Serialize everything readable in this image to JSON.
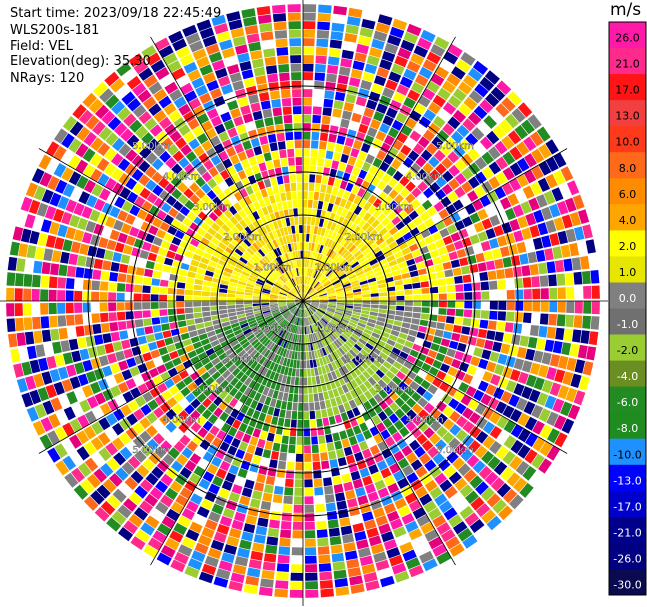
{
  "header": {
    "start_time": "Start time: 2023/09/18 22:45:49",
    "instrument": "WLS200s-181",
    "field": "Field: VEL",
    "elevation": "Elevation(deg): 35.30",
    "nrays": "NRays: 120"
  },
  "colorbar": {
    "unit": "m/s",
    "ticks": [
      "26.0",
      "21.0",
      "17.0",
      "13.0",
      "10.0",
      "8.0",
      "6.0",
      "4.0",
      "2.0",
      "1.0",
      "0.0",
      "-1.0",
      "-2.0",
      "-4.0",
      "-6.0",
      "-8.0",
      "-10.0",
      "-13.0",
      "-17.0",
      "-21.0",
      "-26.0",
      "-30.0"
    ],
    "colors": [
      "#ff1aa8",
      "#ff2a8c",
      "#ff1515",
      "#f23f3f",
      "#ff3a1a",
      "#ff6a1a",
      "#ff8c00",
      "#ffa500",
      "#ffff00",
      "#e6e600",
      "#808080",
      "#707070",
      "#9acd32",
      "#6b8e23",
      "#228b22",
      "#1e8c1e",
      "#1e90ff",
      "#0000ff",
      "#0000cd",
      "#00008b",
      "#000080",
      "#0a0a50"
    ]
  },
  "rings": {
    "labels": [
      "1.00km",
      "2.00km",
      "3.00km",
      "4.00km",
      "5.00km"
    ]
  },
  "chart_data": {
    "type": "heatmap",
    "projection": "polar PPI",
    "field": "VEL",
    "unit": "m/s",
    "nrays": 120,
    "elevation_deg": 35.3,
    "range_rings_km": [
      1,
      2,
      3,
      4,
      5
    ],
    "colorbar_levels": [
      26.0,
      21.0,
      17.0,
      13.0,
      10.0,
      8.0,
      6.0,
      4.0,
      2.0,
      1.0,
      0.0,
      -1.0,
      -2.0,
      -4.0,
      -6.0,
      -8.0,
      -10.0,
      -13.0,
      -17.0,
      -21.0,
      -26.0,
      -30.0
    ],
    "max_range_km": 7.0,
    "grid": true
  }
}
